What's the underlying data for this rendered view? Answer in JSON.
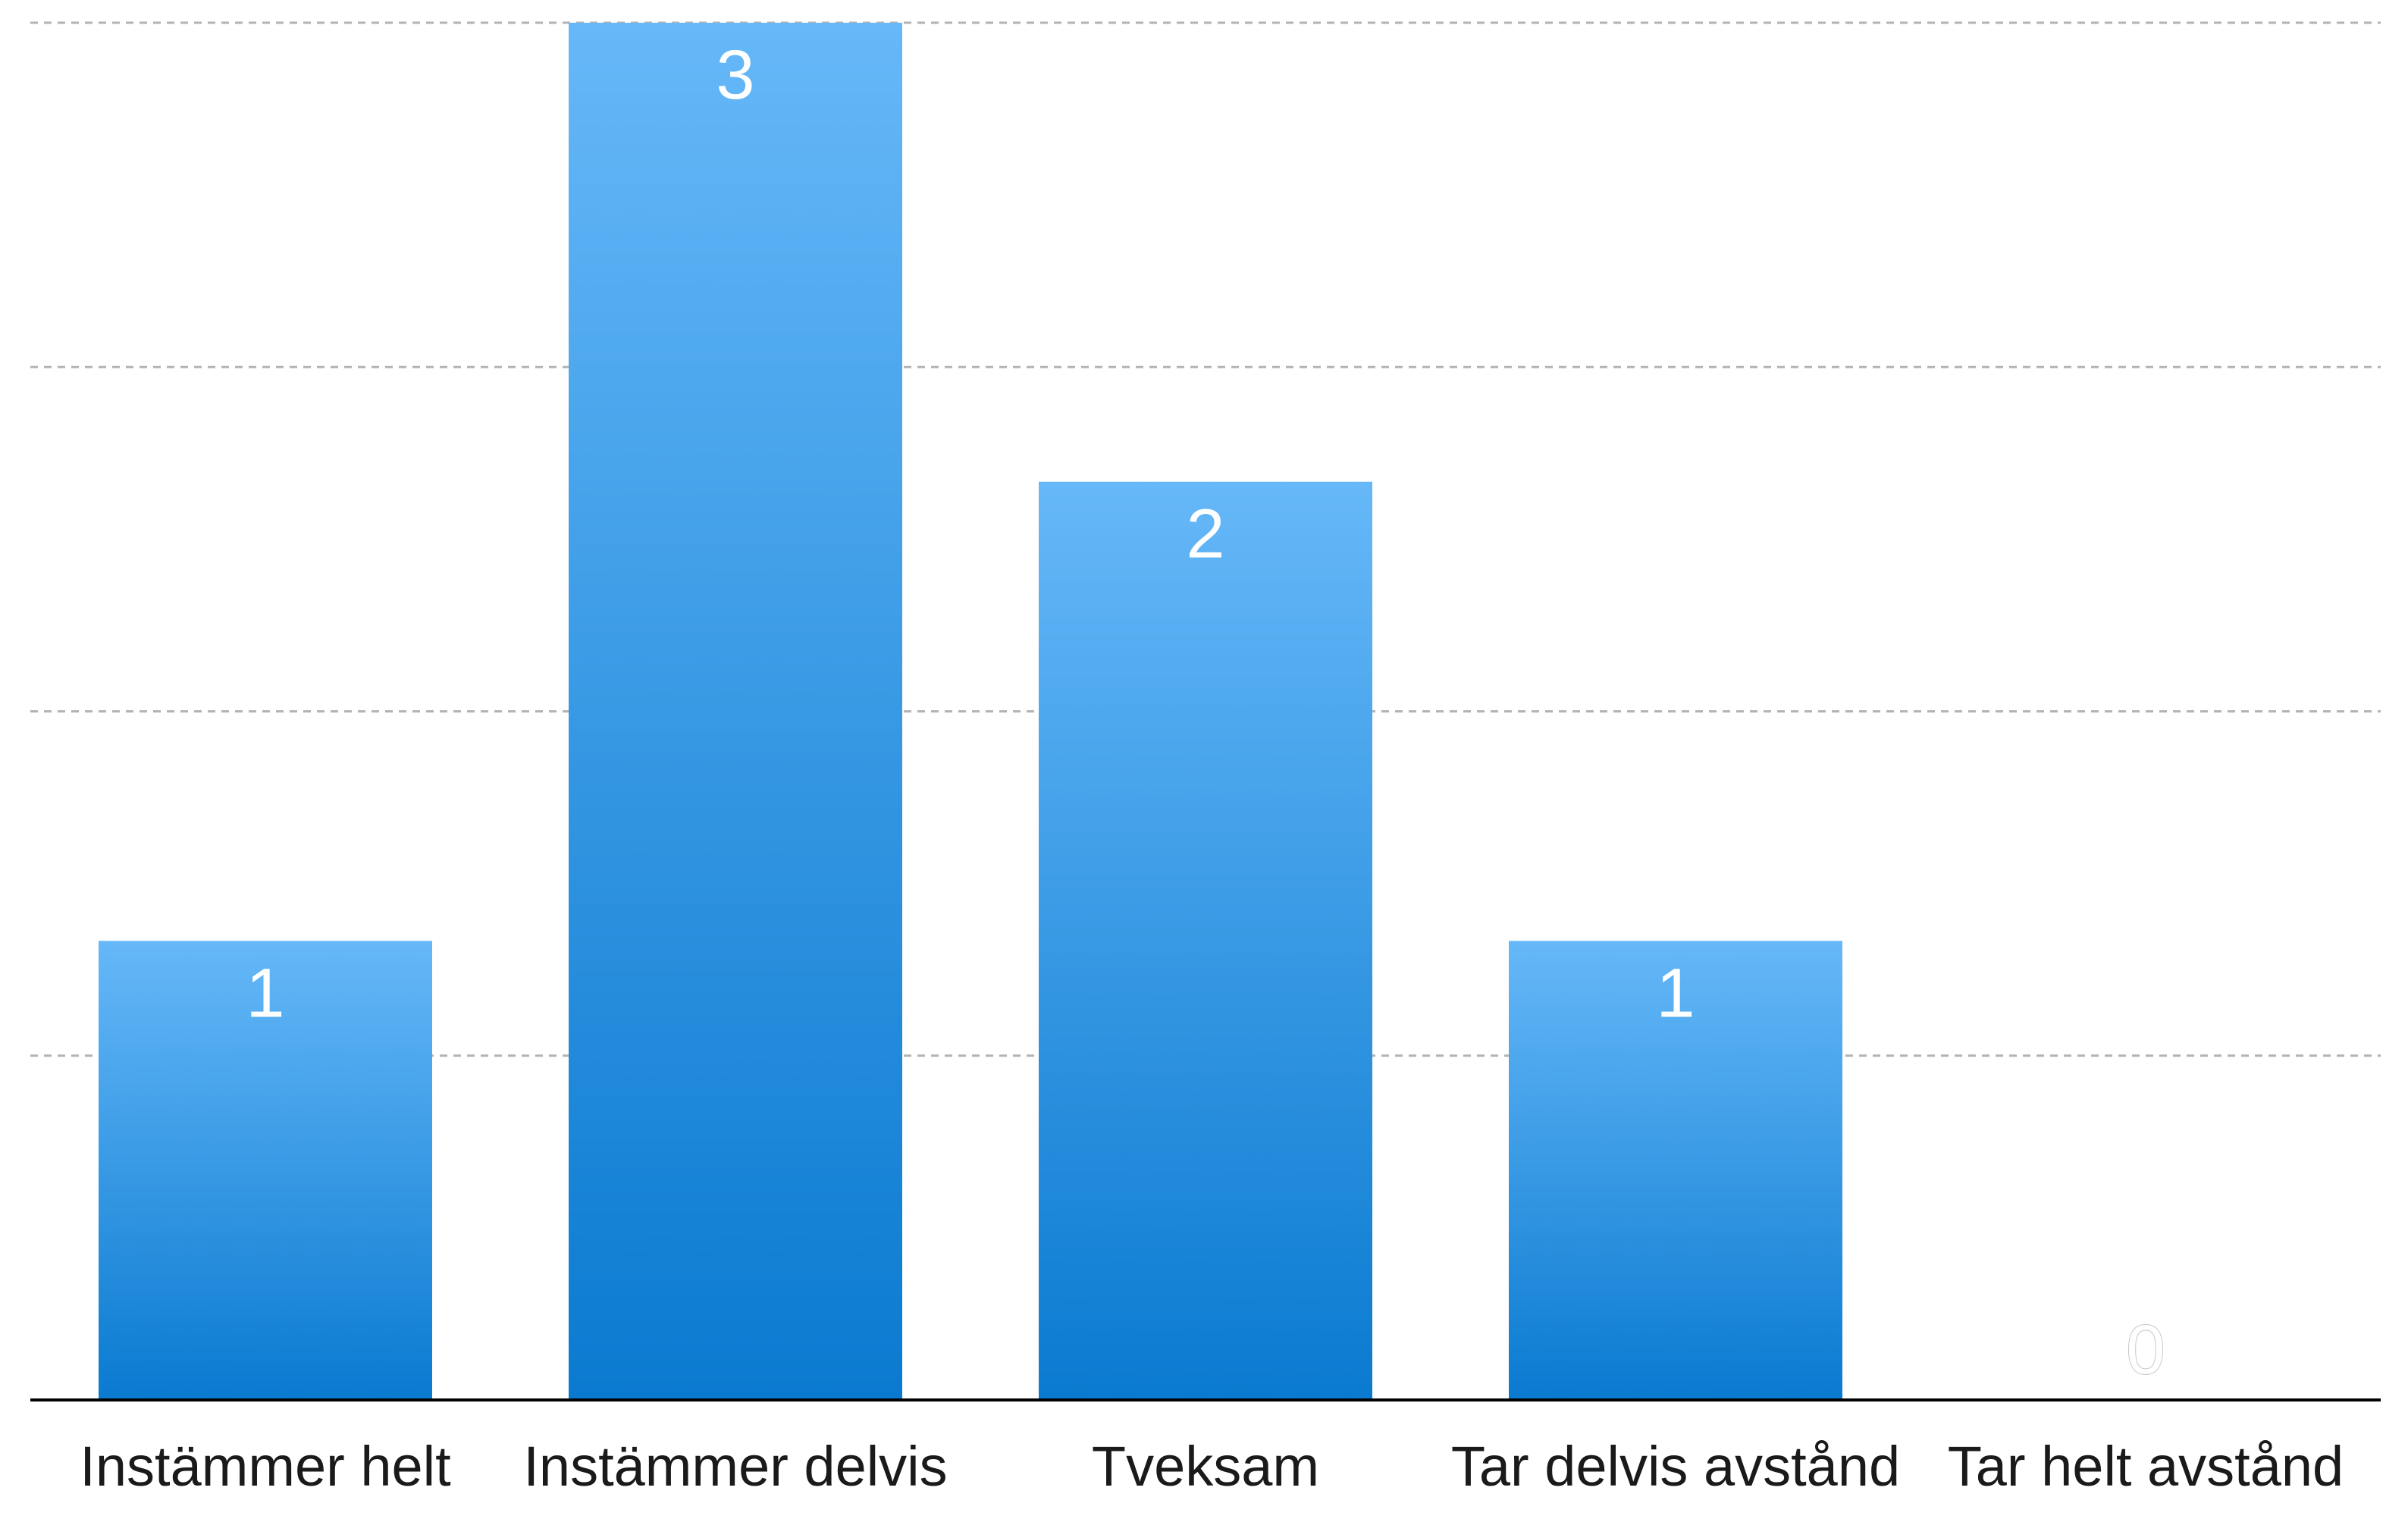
{
  "chart_data": {
    "type": "bar",
    "categories": [
      "Instämmer helt",
      "Instämmer delvis",
      "Tveksam",
      "Tar delvis avstånd",
      "Tar helt avstånd"
    ],
    "values": [
      1,
      3,
      2,
      1,
      0
    ],
    "title": "",
    "xlabel": "",
    "ylabel": "",
    "ylim": [
      0,
      3
    ],
    "grid": true,
    "grid_lines": 4,
    "data_labels": true,
    "legend": "none",
    "colors": {
      "bar_top": "#66b8f8",
      "bar_bottom": "#0a7ad0",
      "grid": "#b3b3b3",
      "axis": "#000000",
      "category_text": "#1a1a1a",
      "value_text": "#ffffff"
    }
  }
}
